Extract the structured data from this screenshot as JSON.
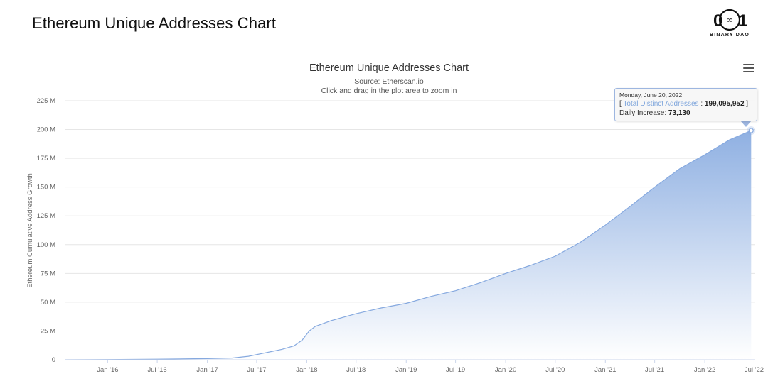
{
  "page": {
    "title": "Ethereum Unique Addresses Chart",
    "logo": {
      "glyph_left": "0",
      "glyph_mid": "∞",
      "glyph_right": "1",
      "text": "BINARY DAO"
    }
  },
  "colors": {
    "area_top": "#8fb0e2",
    "area_bottom": "#ffffff",
    "line": "#86a9df",
    "grid": "#e6e6e6",
    "axis_text": "#666666"
  },
  "chart_data": {
    "type": "area",
    "title": "Ethereum Unique Addresses Chart",
    "subtitle": "Source: Etherscan.io",
    "subtitle2": "Click and drag in the plot area to zoom in",
    "xlabel": "",
    "ylabel": "Ethereum Cumulative Address Growth",
    "ylim": [
      0,
      225000000
    ],
    "xlim": [
      "2015-07-30",
      "2022-07-05"
    ],
    "y_ticks": [
      {
        "value": 0,
        "label": "0"
      },
      {
        "value": 25000000,
        "label": "25 M"
      },
      {
        "value": 50000000,
        "label": "50 M"
      },
      {
        "value": 75000000,
        "label": "75 M"
      },
      {
        "value": 100000000,
        "label": "100 M"
      },
      {
        "value": 125000000,
        "label": "125 M"
      },
      {
        "value": 150000000,
        "label": "150 M"
      },
      {
        "value": 175000000,
        "label": "175 M"
      },
      {
        "value": 200000000,
        "label": "200 M"
      },
      {
        "value": 225000000,
        "label": "225 M"
      }
    ],
    "x_ticks": [
      {
        "date": "2016-01-01",
        "label": "Jan '16"
      },
      {
        "date": "2016-07-01",
        "label": "Jul '16"
      },
      {
        "date": "2017-01-01",
        "label": "Jan '17"
      },
      {
        "date": "2017-07-01",
        "label": "Jul '17"
      },
      {
        "date": "2018-01-01",
        "label": "Jan '18"
      },
      {
        "date": "2018-07-01",
        "label": "Jul '18"
      },
      {
        "date": "2019-01-01",
        "label": "Jan '19"
      },
      {
        "date": "2019-07-01",
        "label": "Jul '19"
      },
      {
        "date": "2020-01-01",
        "label": "Jan '20"
      },
      {
        "date": "2020-07-01",
        "label": "Jul '20"
      },
      {
        "date": "2021-01-01",
        "label": "Jan '21"
      },
      {
        "date": "2021-07-01",
        "label": "Jul '21"
      },
      {
        "date": "2022-01-01",
        "label": "Jan '22"
      },
      {
        "date": "2022-07-01",
        "label": "Jul '22"
      }
    ],
    "grid": true,
    "legend": "none",
    "series": [
      {
        "points": [
          [
            "2015-07-30",
            0
          ],
          [
            "2016-01-01",
            200000
          ],
          [
            "2016-07-01",
            500000
          ],
          [
            "2017-01-01",
            1000000
          ],
          [
            "2017-04-01",
            1500000
          ],
          [
            "2017-06-01",
            3000000
          ],
          [
            "2017-08-01",
            6000000
          ],
          [
            "2017-10-01",
            9000000
          ],
          [
            "2017-11-15",
            12000000
          ],
          [
            "2017-12-15",
            17000000
          ],
          [
            "2018-01-10",
            25000000
          ],
          [
            "2018-02-01",
            29000000
          ],
          [
            "2018-04-01",
            34000000
          ],
          [
            "2018-07-01",
            40000000
          ],
          [
            "2018-10-01",
            45000000
          ],
          [
            "2019-01-01",
            49000000
          ],
          [
            "2019-04-01",
            55000000
          ],
          [
            "2019-07-01",
            60000000
          ],
          [
            "2019-10-01",
            67000000
          ],
          [
            "2020-01-01",
            75000000
          ],
          [
            "2020-04-01",
            82000000
          ],
          [
            "2020-07-01",
            90000000
          ],
          [
            "2020-10-01",
            102000000
          ],
          [
            "2021-01-01",
            117000000
          ],
          [
            "2021-04-01",
            133000000
          ],
          [
            "2021-07-01",
            150000000
          ],
          [
            "2021-10-01",
            166000000
          ],
          [
            "2022-01-01",
            178000000
          ],
          [
            "2022-04-01",
            191000000
          ],
          [
            "2022-06-20",
            199095952
          ]
        ]
      }
    ],
    "tooltip": {
      "date": "Monday, June 20, 2022",
      "series_label": "Total Distinct Addresses",
      "value": "199,095,952",
      "increase_label": "Daily Increase",
      "increase_value": "73,130",
      "point": [
        "2022-06-20",
        199095952
      ]
    }
  }
}
